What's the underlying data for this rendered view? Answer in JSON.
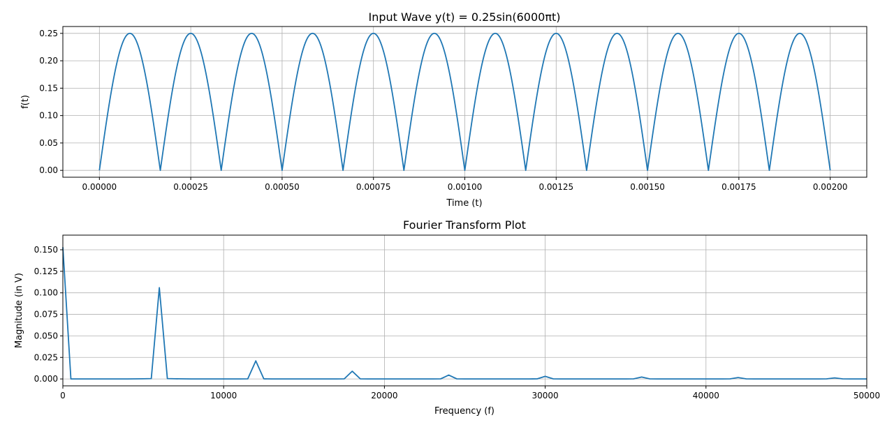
{
  "chart_data": [
    {
      "type": "line",
      "title": "Input Wave y(t) = 0.25sin(6000πt)",
      "xlabel": "Time (t)",
      "ylabel": "f(t)",
      "xlim": [
        -0.0001,
        0.0021
      ],
      "ylim": [
        -0.0125,
        0.2625
      ],
      "xticks": [
        0,
        0.00025,
        0.0005,
        0.00075,
        0.001,
        0.00125,
        0.0015,
        0.00175,
        0.002
      ],
      "xtick_labels": [
        "0.00000",
        "0.00025",
        "0.00050",
        "0.00075",
        "0.00100",
        "0.00125",
        "0.00150",
        "0.00175",
        "0.00200"
      ],
      "yticks": [
        0,
        0.05,
        0.1,
        0.15,
        0.2,
        0.25
      ],
      "ytick_labels": [
        "0.00",
        "0.05",
        "0.10",
        "0.15",
        "0.20",
        "0.25"
      ],
      "grid": true,
      "series": [
        {
          "color": "#1f77b4",
          "function": "|0.25*sin(6000*pi*t)|",
          "x_range": [
            0,
            0.002
          ]
        }
      ]
    },
    {
      "type": "line",
      "title": "Fourier Transform Plot",
      "xlabel": "Frequency (f)",
      "ylabel": "Magnitude (in V)",
      "xlim": [
        0,
        50000
      ],
      "ylim": [
        -0.008,
        0.167
      ],
      "xticks": [
        0,
        10000,
        20000,
        30000,
        40000,
        50000
      ],
      "xtick_labels": [
        "0",
        "10000",
        "20000",
        "30000",
        "40000",
        "50000"
      ],
      "yticks": [
        0,
        0.025,
        0.05,
        0.075,
        0.1,
        0.125,
        0.15
      ],
      "ytick_labels": [
        "0.000",
        "0.025",
        "0.050",
        "0.075",
        "0.100",
        "0.125",
        "0.150"
      ],
      "grid": true,
      "series": [
        {
          "color": "#1f77b4",
          "x": [
            0,
            500,
            1000,
            2000,
            3000,
            4000,
            5000,
            5500,
            6000,
            6500,
            7000,
            8000,
            9000,
            10000,
            11000,
            11500,
            12000,
            12500,
            13000,
            14000,
            15000,
            16000,
            17000,
            17500,
            18000,
            18500,
            19000,
            20000,
            21000,
            22000,
            23000,
            23500,
            24000,
            24500,
            25000,
            26000,
            27000,
            28000,
            29000,
            29500,
            30000,
            30500,
            31000,
            32000,
            33000,
            34000,
            35000,
            35500,
            36000,
            36500,
            37000,
            38000,
            39000,
            40000,
            41000,
            41500,
            42000,
            42500,
            43000,
            44000,
            45000,
            46000,
            47000,
            47500,
            48000,
            48500,
            49000,
            50000
          ],
          "y": [
            0.153,
            0.0,
            0.0,
            0.0,
            0.0,
            0.0,
            0.0002,
            0.0004,
            0.106,
            0.0004,
            0.0002,
            0.0,
            0.0,
            0.0,
            0.0,
            0.0001,
            0.021,
            0.0001,
            0.0,
            0.0,
            0.0,
            0.0,
            0.0,
            0.0001,
            0.009,
            0.0001,
            0.0,
            0.0,
            0.0,
            0.0,
            0.0,
            0.0001,
            0.0045,
            0.0001,
            0.0,
            0.0,
            0.0,
            0.0,
            0.0,
            0.0001,
            0.003,
            0.0001,
            0.0,
            0.0,
            0.0,
            0.0,
            0.0,
            0.0001,
            0.0022,
            0.0001,
            0.0,
            0.0,
            0.0,
            0.0,
            0.0,
            0.0001,
            0.0016,
            0.0001,
            0.0,
            0.0,
            0.0,
            0.0,
            0.0,
            0.0001,
            0.0012,
            0.0001,
            0.0,
            0.0
          ]
        }
      ]
    }
  ]
}
